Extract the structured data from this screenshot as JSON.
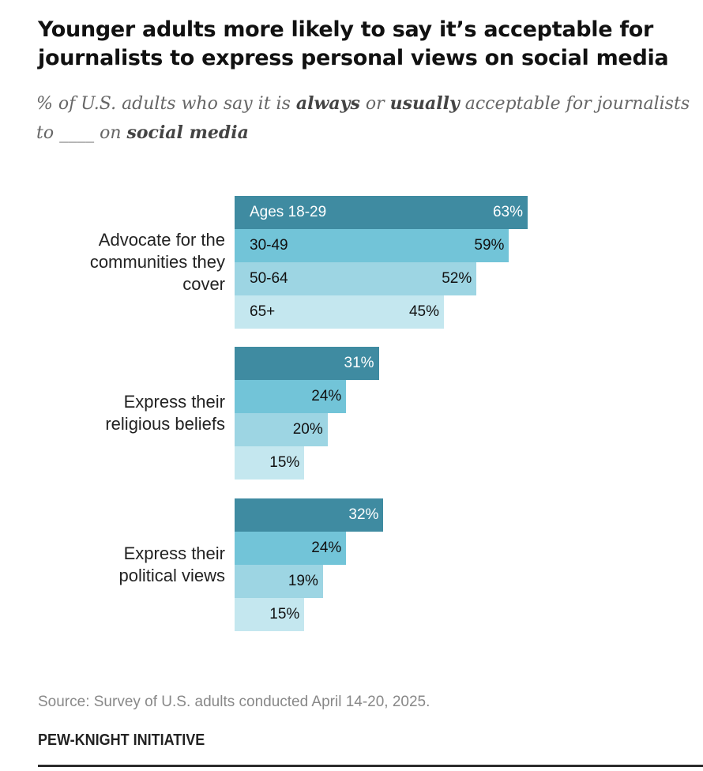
{
  "title": "Younger adults more likely to say it’s acceptable for journalists to express personal views on social media",
  "subtitle": {
    "part1": "% of U.S. adults who say it is ",
    "bold1": "always",
    "part2": " or ",
    "bold2": "usually",
    "part3": " acceptable for journalists to ____ on ",
    "bold3": "social media"
  },
  "chart_data": {
    "type": "bar",
    "orientation": "horizontal",
    "xlim": [
      0,
      100
    ],
    "grid": false,
    "categories": [
      "Advocate for the communities they cover",
      "Express their religious beliefs",
      "Express their political views"
    ],
    "series": [
      {
        "name": "Ages 18-29",
        "color": "#3f8ba1",
        "values": [
          63,
          31,
          32
        ]
      },
      {
        "name": "30-49",
        "color": "#72c4d8",
        "values": [
          59,
          24,
          24
        ]
      },
      {
        "name": "50-64",
        "color": "#9dd5e3",
        "values": [
          52,
          20,
          19
        ]
      },
      {
        "name": "65+",
        "color": "#c4e7ef",
        "values": [
          45,
          15,
          15
        ]
      }
    ],
    "value_suffix": "%"
  },
  "source": "Source: Survey of U.S. adults conducted April 14-20, 2025.",
  "brand": "PEW-KNIGHT INITIATIVE"
}
